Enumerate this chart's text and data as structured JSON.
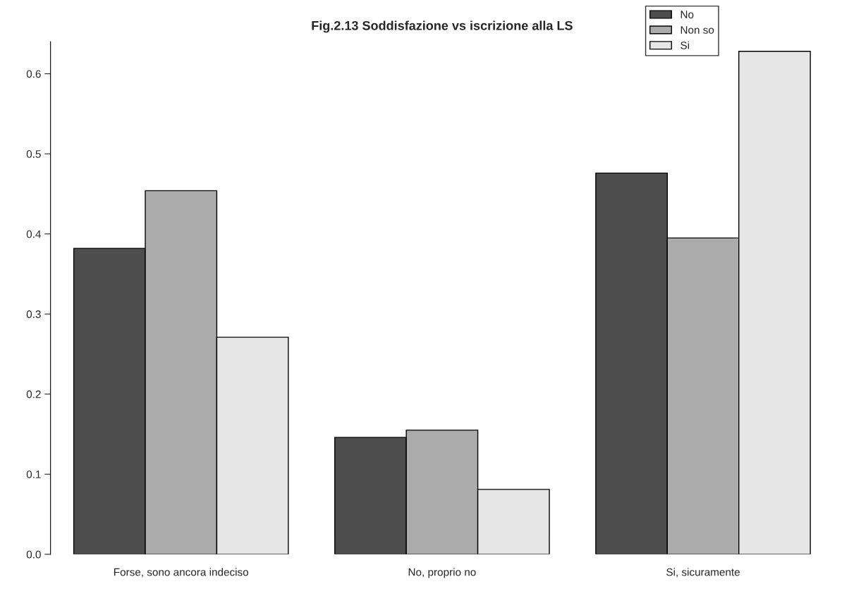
{
  "chart_data": {
    "type": "bar",
    "title": "Fig.2.13 Soddisfazione vs iscrizione alla LS",
    "categories": [
      "Forse, sono ancora indeciso",
      "No, proprio no",
      "Si, sicuramente"
    ],
    "series": [
      {
        "name": "No",
        "color": "#4d4d4d",
        "values": [
          0.382,
          0.146,
          0.476
        ]
      },
      {
        "name": "Non so",
        "color": "#ababab",
        "values": [
          0.454,
          0.155,
          0.395
        ]
      },
      {
        "name": "Si",
        "color": "#e6e6e6",
        "values": [
          0.271,
          0.081,
          0.628
        ]
      }
    ],
    "ylim": [
      0,
      0.64
    ],
    "yticks": [
      {
        "value": 0,
        "label": "0.0"
      },
      0.1,
      0.2,
      0.3,
      0.4,
      0.5,
      0.6
    ],
    "grid": false,
    "legend": "top right"
  }
}
